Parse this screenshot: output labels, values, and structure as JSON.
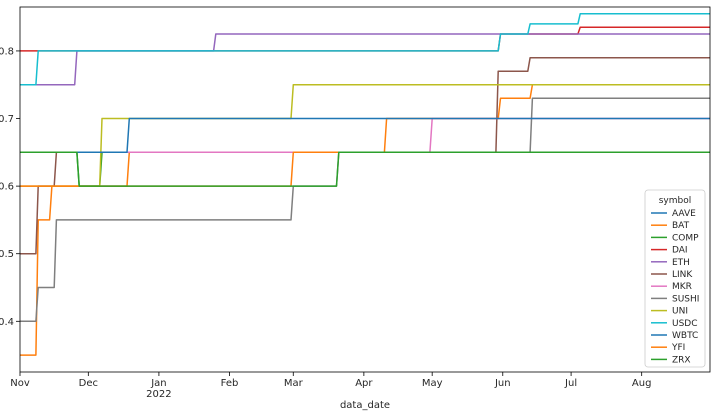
{
  "chart_data": {
    "type": "line",
    "xlabel": "data_date",
    "ylabel": "",
    "x_range": [
      "2021-11-01",
      "2022-08-31"
    ],
    "ylim": [
      0.325,
      0.865
    ],
    "y_ticks": [
      0.4,
      0.5,
      0.6,
      0.7,
      0.8
    ],
    "x_ticks": [
      {
        "date": "2021-11-01",
        "label": "Nov",
        "sub": ""
      },
      {
        "date": "2021-12-01",
        "label": "Dec",
        "sub": ""
      },
      {
        "date": "2022-01-01",
        "label": "Jan",
        "sub": "2022"
      },
      {
        "date": "2022-02-01",
        "label": "Feb",
        "sub": ""
      },
      {
        "date": "2022-03-01",
        "label": "Mar",
        "sub": ""
      },
      {
        "date": "2022-04-01",
        "label": "Apr",
        "sub": ""
      },
      {
        "date": "2022-05-01",
        "label": "May",
        "sub": ""
      },
      {
        "date": "2022-06-01",
        "label": "Jun",
        "sub": ""
      },
      {
        "date": "2022-07-01",
        "label": "Jul",
        "sub": ""
      },
      {
        "date": "2022-08-01",
        "label": "Aug",
        "sub": ""
      }
    ],
    "grid": false,
    "legend": {
      "title": "symbol",
      "placement": "lower-right"
    },
    "series": [
      {
        "name": "AAVE",
        "color": "#1f77b4",
        "points": [
          [
            "2021-11-01",
            0.65
          ],
          [
            "2021-11-26",
            0.65
          ],
          [
            "2021-11-27",
            0.65
          ],
          [
            "2022-08-31",
            0.65
          ]
        ]
      },
      {
        "name": "BAT",
        "color": "#ff7f0e",
        "points": [
          [
            "2021-11-01",
            0.35
          ],
          [
            "2021-11-08",
            0.35
          ],
          [
            "2021-11-09",
            0.55
          ],
          [
            "2021-11-14",
            0.55
          ],
          [
            "2021-11-15",
            0.6
          ],
          [
            "2021-12-18",
            0.6
          ],
          [
            "2021-12-19",
            0.65
          ],
          [
            "2022-02-28",
            0.65
          ],
          [
            "2022-03-01",
            0.65
          ],
          [
            "2022-04-10",
            0.65
          ],
          [
            "2022-04-11",
            0.7
          ],
          [
            "2022-05-30",
            0.7
          ],
          [
            "2022-05-31",
            0.73
          ],
          [
            "2022-06-13",
            0.73
          ],
          [
            "2022-06-14",
            0.75
          ],
          [
            "2022-08-31",
            0.75
          ]
        ]
      },
      {
        "name": "COMP",
        "color": "#2ca02c",
        "points": [
          [
            "2021-11-01",
            0.65
          ],
          [
            "2021-11-26",
            0.65
          ],
          [
            "2021-11-27",
            0.6
          ],
          [
            "2021-12-06",
            0.6
          ],
          [
            "2021-12-07",
            0.65
          ],
          [
            "2022-08-31",
            0.65
          ]
        ]
      },
      {
        "name": "DAI",
        "color": "#d62728",
        "points": [
          [
            "2021-11-01",
            0.8
          ],
          [
            "2022-05-30",
            0.8
          ],
          [
            "2022-05-31",
            0.825
          ],
          [
            "2022-07-04",
            0.825
          ],
          [
            "2022-07-05",
            0.835
          ],
          [
            "2022-08-31",
            0.835
          ]
        ]
      },
      {
        "name": "ETH",
        "color": "#9467bd",
        "points": [
          [
            "2021-11-01",
            0.75
          ],
          [
            "2021-11-25",
            0.75
          ],
          [
            "2021-11-26",
            0.8
          ],
          [
            "2022-01-25",
            0.8
          ],
          [
            "2022-01-26",
            0.825
          ],
          [
            "2022-08-31",
            0.825
          ]
        ]
      },
      {
        "name": "LINK",
        "color": "#8c564b",
        "points": [
          [
            "2021-11-01",
            0.5
          ],
          [
            "2021-11-08",
            0.5
          ],
          [
            "2021-11-09",
            0.6
          ],
          [
            "2021-11-16",
            0.6
          ],
          [
            "2021-11-17",
            0.65
          ],
          [
            "2022-05-29",
            0.65
          ],
          [
            "2022-05-30",
            0.77
          ],
          [
            "2022-06-12",
            0.77
          ],
          [
            "2022-06-13",
            0.79
          ],
          [
            "2022-08-31",
            0.79
          ]
        ]
      },
      {
        "name": "MKR",
        "color": "#e377c2",
        "points": [
          [
            "2021-11-01",
            0.65
          ],
          [
            "2022-04-30",
            0.65
          ],
          [
            "2022-05-01",
            0.7
          ],
          [
            "2022-08-31",
            0.7
          ]
        ]
      },
      {
        "name": "SUSHI",
        "color": "#7f7f7f",
        "points": [
          [
            "2021-11-01",
            0.4
          ],
          [
            "2021-11-08",
            0.4
          ],
          [
            "2021-11-09",
            0.45
          ],
          [
            "2021-11-16",
            0.45
          ],
          [
            "2021-11-17",
            0.55
          ],
          [
            "2022-02-28",
            0.55
          ],
          [
            "2022-03-01",
            0.6
          ],
          [
            "2022-03-20",
            0.6
          ],
          [
            "2022-03-21",
            0.65
          ],
          [
            "2022-06-13",
            0.65
          ],
          [
            "2022-06-14",
            0.73
          ],
          [
            "2022-08-31",
            0.73
          ]
        ]
      },
      {
        "name": "UNI",
        "color": "#bcbd22",
        "points": [
          [
            "2021-11-01",
            0.6
          ],
          [
            "2021-12-06",
            0.6
          ],
          [
            "2021-12-07",
            0.7
          ],
          [
            "2022-02-28",
            0.7
          ],
          [
            "2022-03-01",
            0.75
          ],
          [
            "2022-08-31",
            0.75
          ]
        ]
      },
      {
        "name": "USDC",
        "color": "#17becf",
        "points": [
          [
            "2021-11-01",
            0.75
          ],
          [
            "2021-11-08",
            0.75
          ],
          [
            "2021-11-09",
            0.8
          ],
          [
            "2022-05-30",
            0.8
          ],
          [
            "2022-05-31",
            0.825
          ],
          [
            "2022-06-12",
            0.825
          ],
          [
            "2022-06-13",
            0.84
          ],
          [
            "2022-07-04",
            0.84
          ],
          [
            "2022-07-05",
            0.855
          ],
          [
            "2022-08-31",
            0.855
          ]
        ]
      },
      {
        "name": "WBTC",
        "color": "#1f77b4",
        "points": [
          [
            "2021-11-01",
            0.65
          ],
          [
            "2021-12-18",
            0.65
          ],
          [
            "2021-12-19",
            0.7
          ],
          [
            "2022-08-31",
            0.7
          ]
        ]
      },
      {
        "name": "YFI",
        "color": "#ff7f0e",
        "points": [
          [
            "2021-11-01",
            0.6
          ],
          [
            "2021-11-08",
            0.6
          ],
          [
            "2021-11-09",
            0.6
          ],
          [
            "2022-02-28",
            0.6
          ],
          [
            "2022-03-01",
            0.65
          ],
          [
            "2022-08-31",
            0.65
          ]
        ]
      },
      {
        "name": "ZRX",
        "color": "#2ca02c",
        "points": [
          [
            "2021-11-01",
            0.65
          ],
          [
            "2021-11-26",
            0.65
          ],
          [
            "2021-11-27",
            0.6
          ],
          [
            "2022-03-20",
            0.6
          ],
          [
            "2022-03-21",
            0.65
          ],
          [
            "2022-08-31",
            0.65
          ]
        ]
      }
    ]
  }
}
